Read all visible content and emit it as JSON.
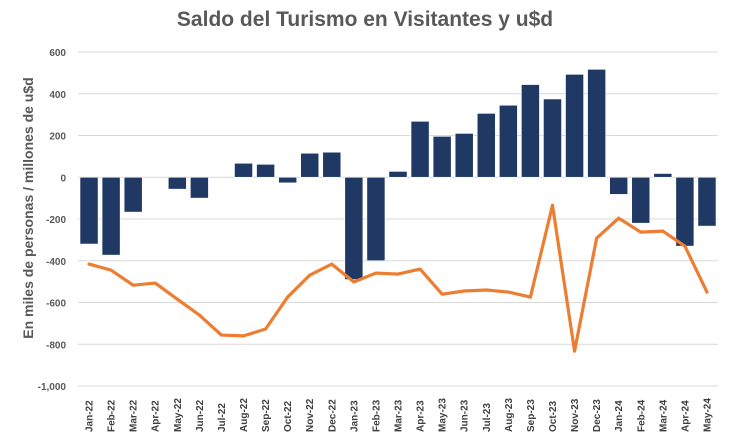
{
  "chart_data": {
    "type": "bar+line",
    "title": "Saldo del Turismo en Visitantes y u$d",
    "xlabel": "",
    "ylabel": "En miles de personas / millones de u$d",
    "ylim": [
      -1000,
      600
    ],
    "yticks": [
      600,
      400,
      200,
      0,
      -200,
      -400,
      -600,
      -800,
      -1000
    ],
    "ytick_labels": [
      "600",
      "400",
      "200",
      "0",
      "-200",
      "-400",
      "-600",
      "-800",
      "-1,000"
    ],
    "grid": true,
    "legend": "none",
    "categories": [
      "Jan-22",
      "Feb-22",
      "Mar-22",
      "Apr-22",
      "May-22",
      "Jun-22",
      "Jul-22",
      "Aug-22",
      "Sep-22",
      "Oct-22",
      "Nov-22",
      "Dec-22",
      "Jan-23",
      "Feb-23",
      "Mar-23",
      "Apr-23",
      "May-23",
      "Jun-23",
      "Jul-23",
      "Aug-23",
      "Sep-23",
      "Oct-23",
      "Nov-23",
      "Dec-23",
      "Jan-24",
      "Feb-24",
      "Mar-24",
      "Apr-24",
      "May-24"
    ],
    "series": [
      {
        "type": "bar",
        "color": "#1f3864",
        "values": [
          -320,
          -373,
          -167,
          0,
          -57,
          -100,
          0,
          67,
          62,
          -27,
          115,
          120,
          -490,
          -400,
          28,
          268,
          196,
          210,
          306,
          345,
          444,
          375,
          493,
          517,
          -82,
          -220,
          18,
          -330,
          -234
        ]
      },
      {
        "type": "line",
        "color": "#ed7d31",
        "values": [
          -416,
          -445,
          -517,
          -507,
          -584,
          -660,
          -756,
          -760,
          -727,
          -574,
          -469,
          -416,
          -502,
          -459,
          -464,
          -440,
          -560,
          -545,
          -540,
          -550,
          -574,
          -134,
          -833,
          -292,
          -196,
          -263,
          -258,
          -330,
          -550
        ]
      }
    ]
  }
}
